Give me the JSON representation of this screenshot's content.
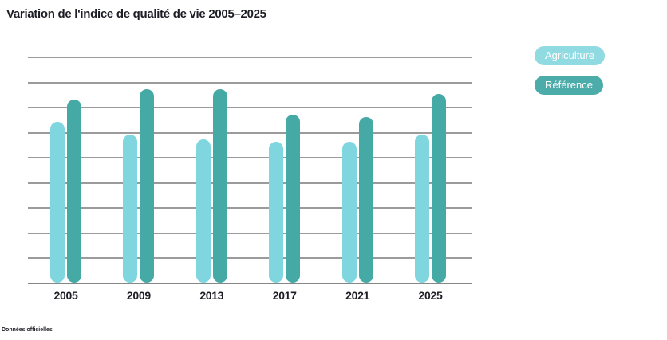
{
  "title": "Variation de l'indice de qualité de vie 2005–2025",
  "legend": {
    "items": [
      {
        "label": "Agriculture",
        "color": "#90dae1"
      },
      {
        "label": "Référence",
        "color": "#4bacaa"
      }
    ]
  },
  "footnote": "Données officielles",
  "colors": {
    "agriculture_bar": "#7fd6de",
    "reference_bar": "#45a9a6",
    "gridline": "#9b9b9b",
    "axis_line": "#878787",
    "text": "#1d1d26"
  },
  "chart_data": {
    "type": "bar",
    "title": "Variation de l'indice de qualité de vie 2005–2025",
    "categories": [
      "2005",
      "2009",
      "2013",
      "2017",
      "2021",
      "2025"
    ],
    "series": [
      {
        "name": "Agriculture",
        "color": "#7fd6de",
        "values": [
          64,
          59,
          57,
          56,
          56,
          59
        ]
      },
      {
        "name": "Référence",
        "color": "#45a9a6",
        "values": [
          73,
          77,
          77,
          67,
          66,
          75
        ]
      }
    ],
    "xlabel": "",
    "ylabel": "",
    "ylim": [
      0,
      90
    ],
    "gridline_step": 10,
    "grid": true,
    "y_tick_labels_visible": false,
    "legend_position": "top-right"
  }
}
